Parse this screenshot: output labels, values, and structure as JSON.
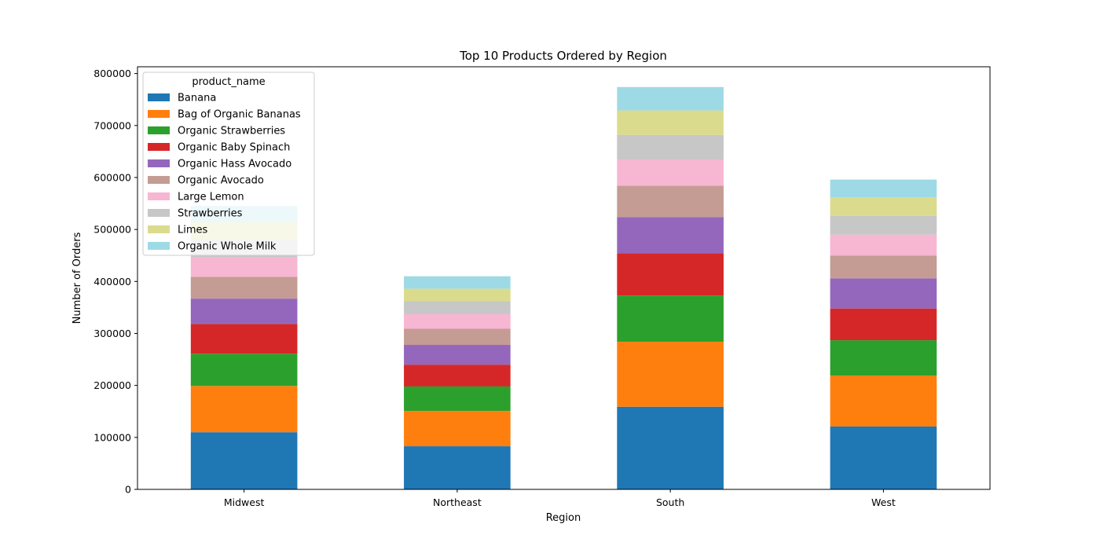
{
  "chart_data": {
    "type": "bar",
    "stacked": true,
    "title": "Top 10 Products Ordered by Region",
    "xlabel": "Region",
    "ylabel": "Number of Orders",
    "categories": [
      "Midwest",
      "Northeast",
      "South",
      "West"
    ],
    "ylim": [
      0,
      813000
    ],
    "yticks": [
      0,
      100000,
      200000,
      300000,
      400000,
      500000,
      600000,
      700000,
      800000
    ],
    "grid": false,
    "legend": {
      "title": "product_name",
      "placement": "upper-left"
    },
    "series": [
      {
        "name": "Banana",
        "color": "#1f77b4",
        "values": [
          110000,
          83000,
          159000,
          121000
        ]
      },
      {
        "name": "Bag of Organic Bananas",
        "color": "#ff7f0e",
        "values": [
          89000,
          68000,
          125000,
          98000
        ]
      },
      {
        "name": "Organic Strawberries",
        "color": "#2ca02c",
        "values": [
          62000,
          47000,
          89000,
          68000
        ]
      },
      {
        "name": "Organic Baby Spinach",
        "color": "#d62728",
        "values": [
          57000,
          42000,
          81000,
          61000
        ]
      },
      {
        "name": "Organic Hass Avocado",
        "color": "#9467bd",
        "values": [
          49000,
          38000,
          70000,
          58000
        ]
      },
      {
        "name": "Organic Avocado",
        "color": "#c49c94",
        "values": [
          42000,
          31000,
          60000,
          44000
        ]
      },
      {
        "name": "Large Lemon",
        "color": "#f7b6d2",
        "values": [
          37000,
          28000,
          50000,
          40000
        ]
      },
      {
        "name": "Strawberries",
        "color": "#c7c7c7",
        "values": [
          35000,
          25000,
          48000,
          36000
        ]
      },
      {
        "name": "Limes",
        "color": "#dbdb8d",
        "values": [
          33000,
          24000,
          47000,
          36000
        ]
      },
      {
        "name": "Organic Whole Milk",
        "color": "#9edae5",
        "values": [
          31000,
          24000,
          45000,
          34000
        ]
      }
    ]
  }
}
